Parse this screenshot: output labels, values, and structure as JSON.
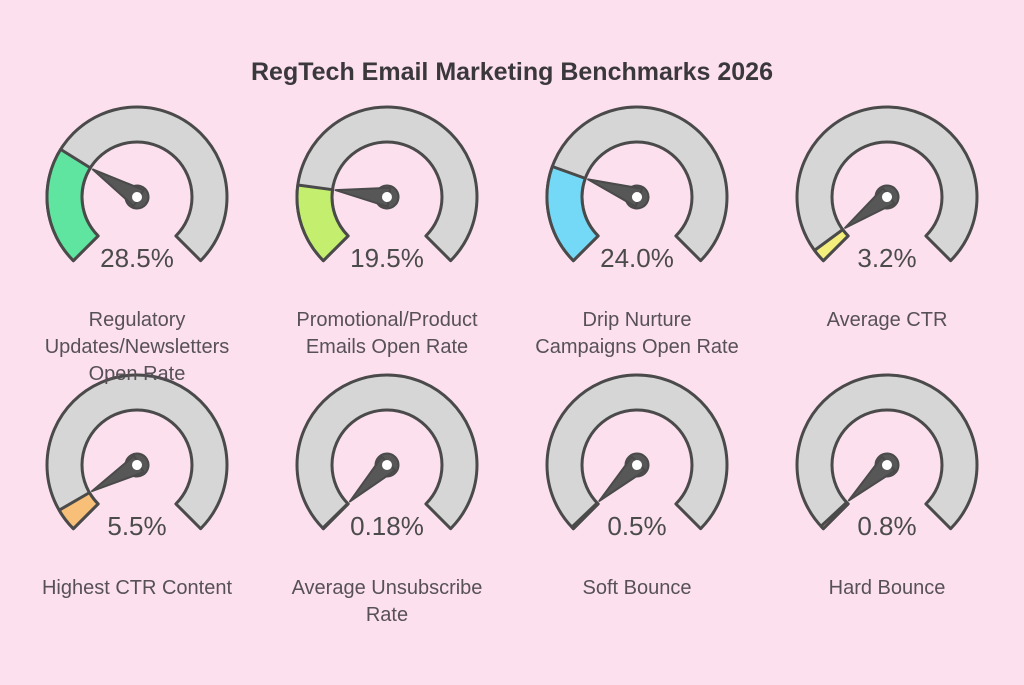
{
  "title": "RegTech Email Marketing Benchmarks 2026",
  "colors": {
    "background": "#fce0ee",
    "track_fill": "#d6d6d6",
    "outline": "#4a4a4a",
    "needle": "#575757",
    "title_text": "#3b383b",
    "value_text": "#4b4b4b",
    "label_text": "#575157"
  },
  "chart_data": {
    "type": "gauge",
    "title": "RegTech Email Marketing Benchmarks 2026",
    "layout": {
      "rows": 2,
      "columns": 4,
      "legend": "none",
      "grid": "off"
    },
    "scale": {
      "min": 0,
      "max": 100,
      "start_angle_deg": 135,
      "sweep_deg": 270,
      "unit": "%"
    },
    "gauges": [
      {
        "label": "Regulatory Updates/Newsletters Open Rate",
        "label_lines": [
          "Regulatory",
          "Updates/Newsletters",
          "Open Rate"
        ],
        "value": 28.5,
        "display": "28.5%",
        "color": "#5fe5a0"
      },
      {
        "label": "Promotional/Product Emails Open Rate",
        "label_lines": [
          "Promotional/Product",
          "Emails Open Rate"
        ],
        "value": 19.5,
        "display": "19.5%",
        "color": "#c4ee6e"
      },
      {
        "label": "Drip Nurture Campaigns Open Rate",
        "label_lines": [
          "Drip Nurture",
          "Campaigns Open Rate"
        ],
        "value": 24.0,
        "display": "24.0%",
        "color": "#74d9f7"
      },
      {
        "label": "Average CTR",
        "label_lines": [
          "Average CTR"
        ],
        "value": 3.2,
        "display": "3.2%",
        "color": "#f4ef7d"
      },
      {
        "label": "Highest CTR Content",
        "label_lines": [
          "Highest CTR Content"
        ],
        "value": 5.5,
        "display": "5.5%",
        "color": "#f8bf79"
      },
      {
        "label": "Average Unsubscribe Rate",
        "label_lines": [
          "Average Unsubscribe",
          "Rate"
        ],
        "value": 0.18,
        "display": "0.18%",
        "color": "#f2a0b5"
      },
      {
        "label": "Soft Bounce",
        "label_lines": [
          "Soft Bounce"
        ],
        "value": 0.5,
        "display": "0.5%",
        "color": "#f2a0b5"
      },
      {
        "label": "Hard Bounce",
        "label_lines": [
          "Hard Bounce"
        ],
        "value": 0.8,
        "display": "0.8%",
        "color": "#f2a0b5"
      }
    ]
  }
}
